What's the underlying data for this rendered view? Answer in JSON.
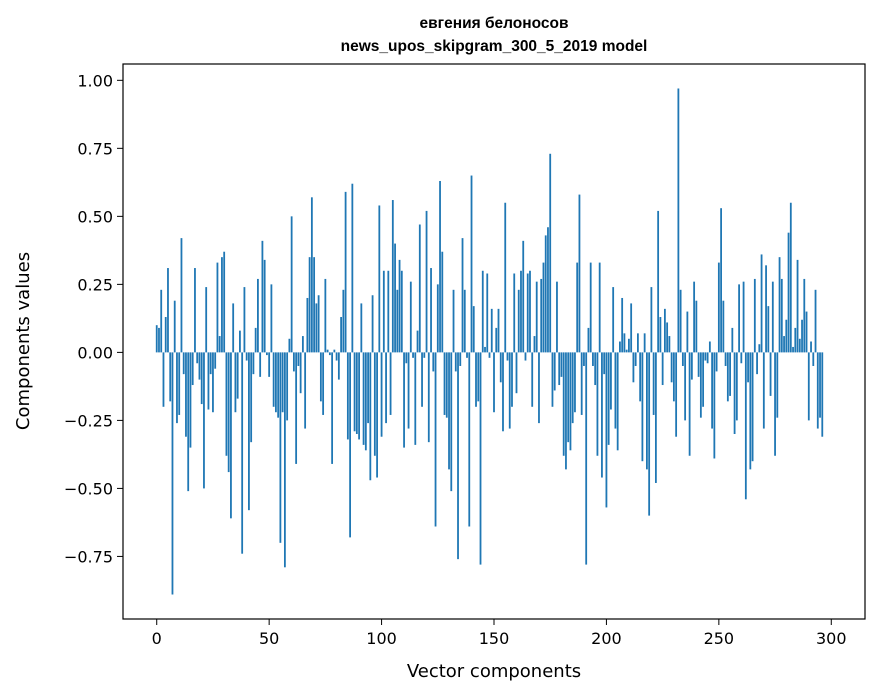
{
  "chart_data": {
    "type": "bar",
    "title": "евгения белоносов",
    "subtitle": "news_upos_skipgram_300_5_2019 model",
    "xlabel": "Vector components",
    "ylabel": "Components values",
    "xlim": [
      -15,
      315
    ],
    "ylim": [
      -0.98,
      1.06
    ],
    "xticks": [
      0,
      50,
      100,
      150,
      200,
      250,
      300
    ],
    "yticks": [
      -0.75,
      -0.5,
      -0.25,
      0.0,
      0.25,
      0.5,
      0.75,
      1.0
    ],
    "ytick_labels": [
      "−0.75",
      "−0.50",
      "−0.25",
      "0.00",
      "0.25",
      "0.50",
      "0.75",
      "1.00"
    ],
    "bar_color": "#1f77b4",
    "grid": false,
    "values": [
      0.1,
      0.09,
      0.23,
      -0.2,
      0.13,
      0.31,
      -0.18,
      -0.89,
      0.19,
      -0.26,
      -0.23,
      0.42,
      -0.08,
      -0.31,
      -0.51,
      -0.35,
      -0.12,
      0.31,
      -0.04,
      -0.1,
      -0.19,
      -0.5,
      0.24,
      -0.21,
      -0.08,
      -0.22,
      -0.06,
      0.33,
      0.06,
      0.35,
      0.37,
      -0.38,
      -0.44,
      -0.61,
      0.18,
      -0.22,
      -0.17,
      0.08,
      -0.74,
      0.24,
      -0.03,
      -0.58,
      -0.33,
      -0.08,
      0.09,
      0.27,
      -0.09,
      0.41,
      0.34,
      -0.01,
      -0.09,
      0.25,
      -0.2,
      -0.22,
      -0.24,
      -0.7,
      -0.22,
      -0.79,
      -0.25,
      0.05,
      0.5,
      -0.07,
      -0.41,
      -0.05,
      -0.15,
      0.06,
      -0.28,
      0.2,
      0.35,
      0.57,
      0.35,
      0.18,
      0.21,
      -0.18,
      -0.23,
      0.27,
      0.01,
      -0.01,
      -0.41,
      0.01,
      -0.03,
      -0.1,
      0.13,
      0.23,
      0.59,
      -0.32,
      -0.68,
      0.62,
      -0.29,
      -0.3,
      -0.32,
      0.18,
      -0.34,
      -0.36,
      -0.26,
      -0.47,
      0.21,
      -0.38,
      -0.46,
      0.54,
      -0.31,
      0.3,
      -0.26,
      0.3,
      -0.23,
      0.56,
      0.4,
      0.23,
      0.34,
      0.3,
      -0.35,
      -0.04,
      -0.28,
      0.26,
      -0.02,
      -0.34,
      0.08,
      0.47,
      -0.2,
      -0.02,
      0.52,
      -0.33,
      0.31,
      -0.07,
      -0.64,
      0.25,
      0.63,
      0.37,
      -0.23,
      -0.24,
      -0.43,
      -0.51,
      0.23,
      -0.07,
      -0.76,
      -0.05,
      0.42,
      0.23,
      -0.02,
      -0.64,
      0.65,
      0.17,
      -0.2,
      -0.18,
      -0.78,
      0.3,
      0.02,
      0.29,
      -0.02,
      0.16,
      -0.22,
      0.09,
      0.16,
      -0.11,
      -0.29,
      0.55,
      -0.03,
      -0.28,
      -0.2,
      0.29,
      -0.15,
      0.23,
      0.3,
      0.41,
      -0.03,
      0.29,
      0.3,
      -0.2,
      0.06,
      0.26,
      -0.26,
      0.27,
      0.33,
      0.43,
      0.46,
      0.73,
      -0.2,
      -0.14,
      0.26,
      -0.12,
      -0.09,
      -0.38,
      -0.43,
      -0.33,
      -0.36,
      -0.26,
      -0.22,
      0.33,
      0.58,
      -0.23,
      -0.05,
      -0.78,
      0.09,
      0.33,
      -0.05,
      -0.12,
      -0.38,
      0.33,
      -0.46,
      -0.08,
      -0.57,
      -0.34,
      -0.21,
      0.24,
      -0.28,
      -0.36,
      0.04,
      0.2,
      0.07,
      0.01,
      0.05,
      0.18,
      -0.11,
      -0.05,
      0.07,
      -0.18,
      -0.4,
      0.07,
      -0.43,
      -0.6,
      0.24,
      -0.23,
      -0.48,
      0.52,
      0.13,
      -0.12,
      0.16,
      0.11,
      0.06,
      -0.11,
      -0.18,
      -0.31,
      0.97,
      0.23,
      -0.05,
      -0.25,
      0.15,
      -0.38,
      -0.1,
      0.26,
      0.19,
      -0.09,
      -0.24,
      -0.2,
      -0.03,
      -0.04,
      0.04,
      -0.28,
      -0.39,
      -0.07,
      0.33,
      0.53,
      0.19,
      -0.05,
      -0.18,
      -0.16,
      0.09,
      -0.3,
      -0.25,
      0.25,
      -0.04,
      0.26,
      -0.54,
      -0.11,
      -0.43,
      -0.4,
      0.27,
      -0.08,
      0.03,
      0.36,
      -0.28,
      0.32,
      0.17,
      -0.16,
      0.26,
      -0.38,
      -0.24,
      0.35,
      0.27,
      0.06,
      0.12,
      0.44,
      0.55,
      0.02,
      0.09,
      0.34,
      0.05,
      0.12,
      0.27,
      0.15,
      -0.25,
      0.04,
      -0.05,
      0.23,
      -0.28,
      -0.24,
      -0.31
    ]
  }
}
